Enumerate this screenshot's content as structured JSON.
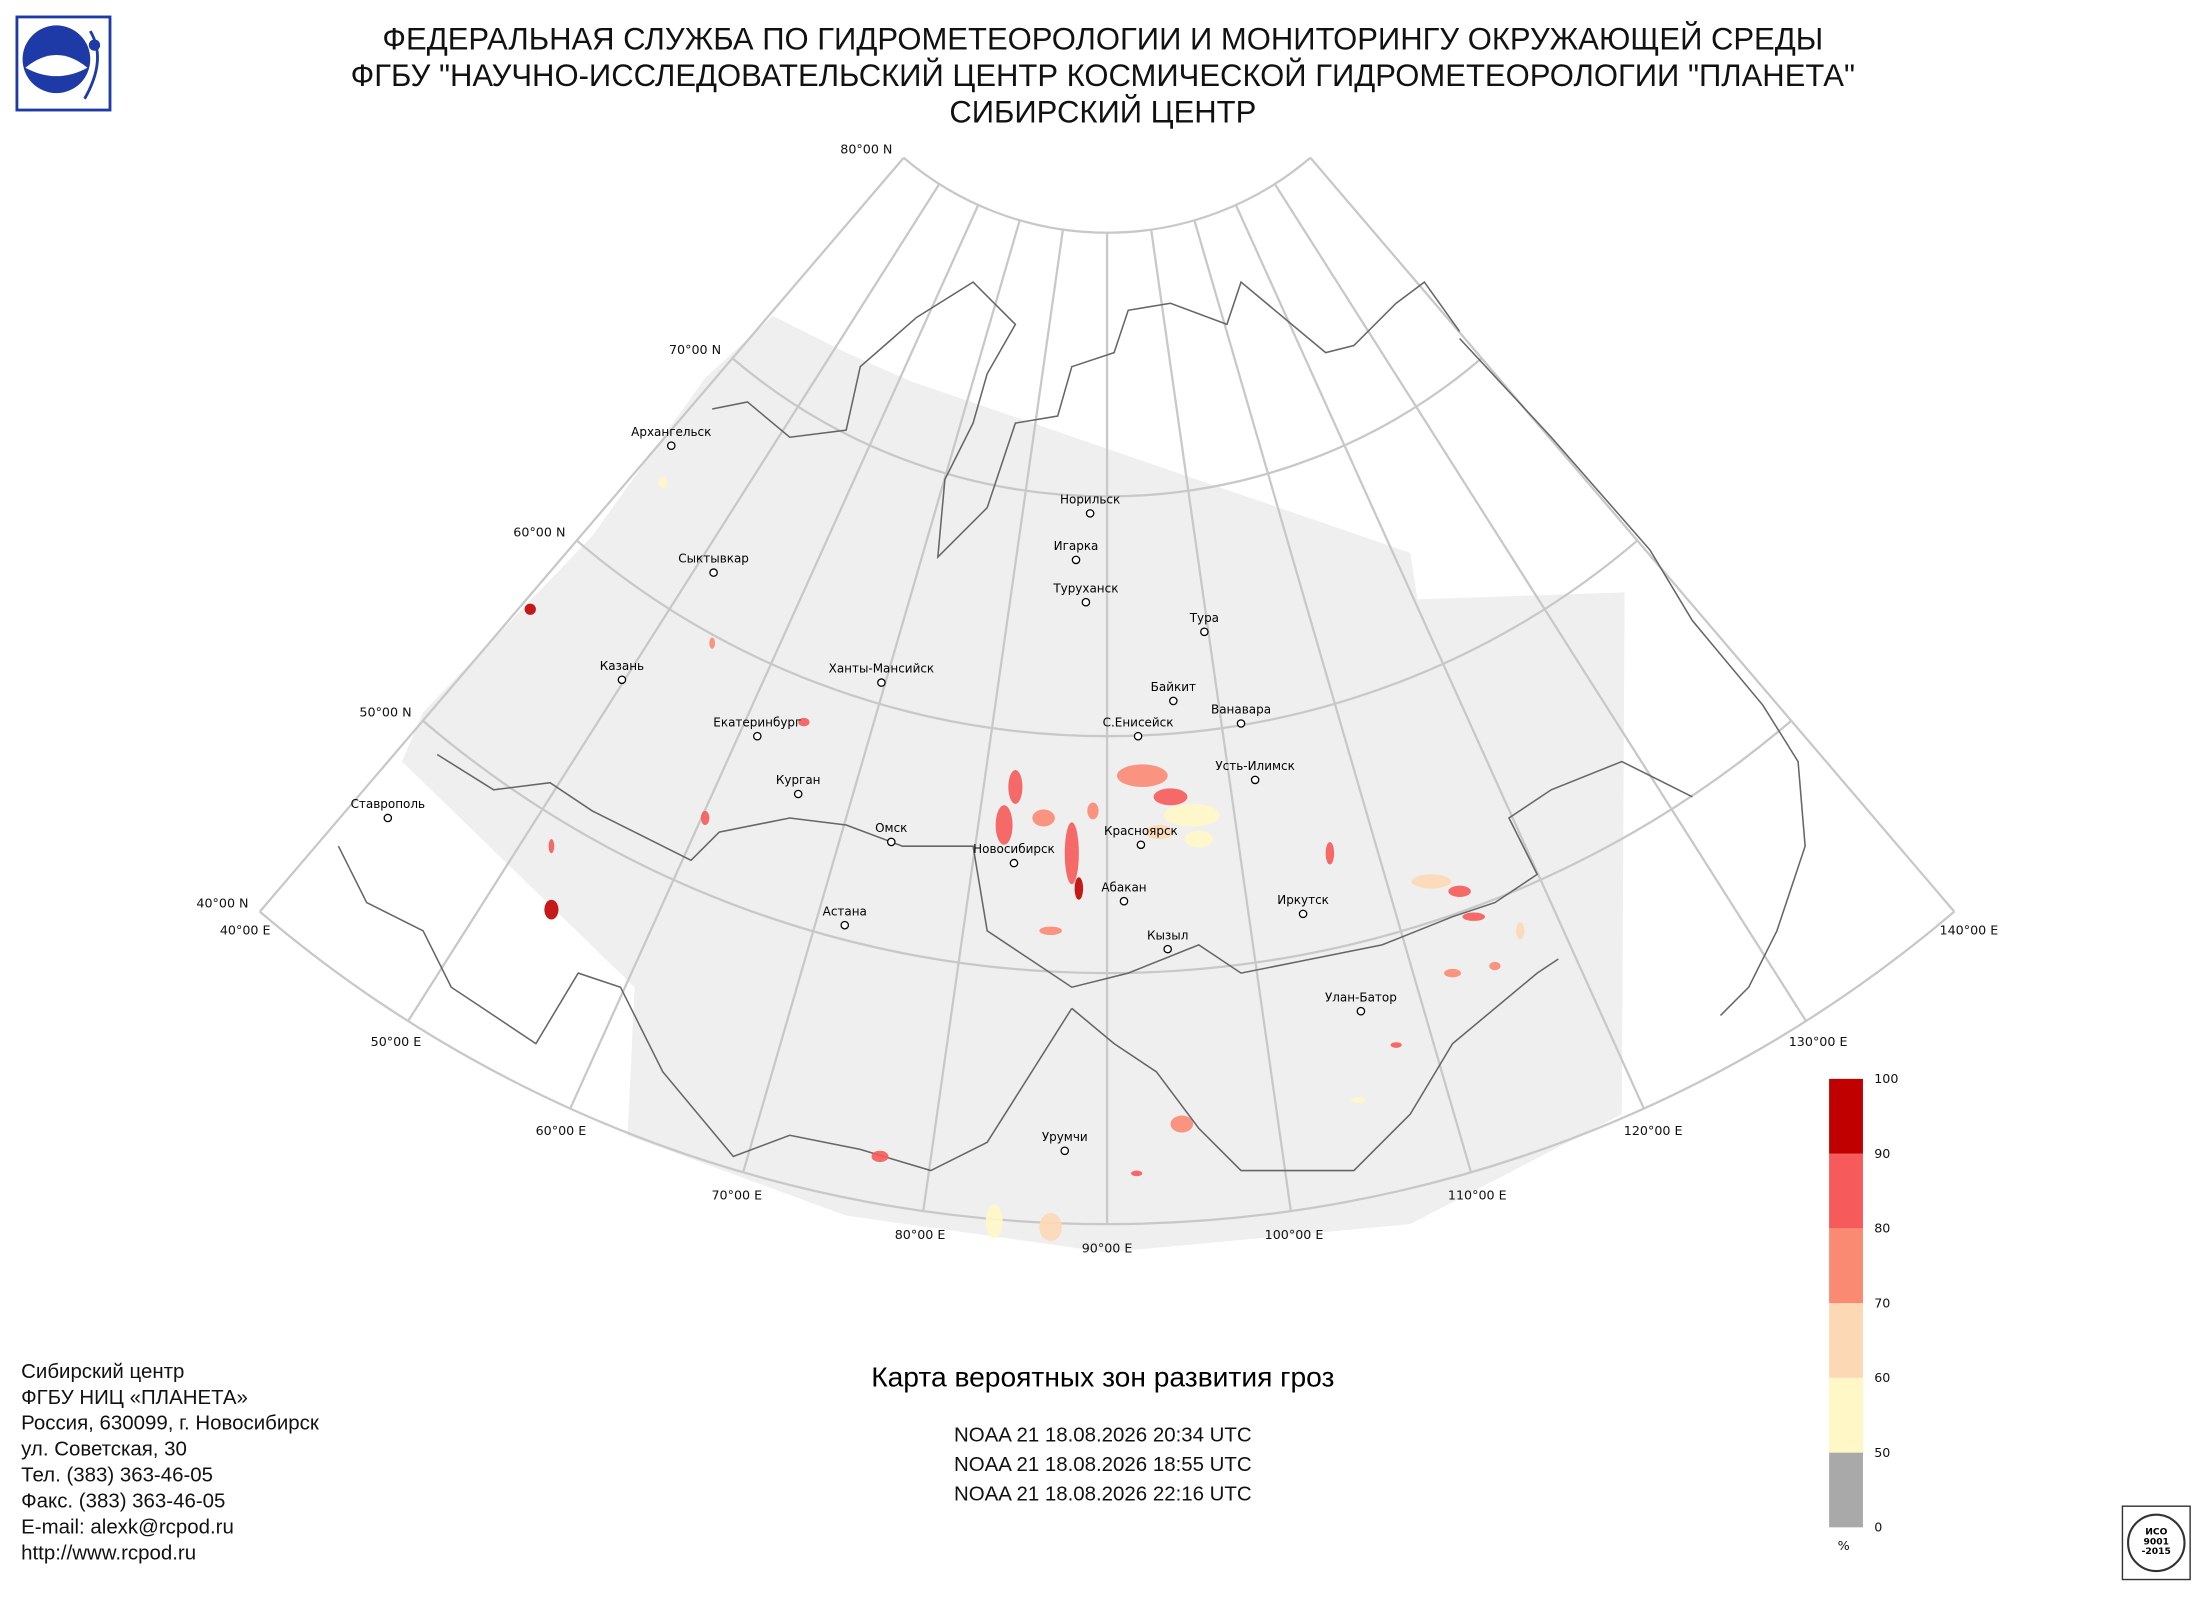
{
  "header": {
    "lines": [
      "ФЕДЕРАЛЬНАЯ СЛУЖБА ПО ГИДРОМЕТЕОРОЛОГИИ И МОНИТОРИНГУ ОКРУЖАЮЩЕЙ СРЕДЫ",
      "ФГБУ \"НАУЧНО-ИССЛЕДОВАТЕЛЬСКИЙ ЦЕНТР КОСМИЧЕСКОЙ ГИДРОМЕТЕОРОЛОГИИ \"ПЛАНЕТА\"",
      "СИБИРСКИЙ ЦЕНТР"
    ]
  },
  "map": {
    "latitude_labels": [
      "80°00 N",
      "70°00 N",
      "60°00 N",
      "50°00 N",
      "40°00 N"
    ],
    "longitude_labels": [
      "40°00 E",
      "50°00 E",
      "60°00 E",
      "70°00 E",
      "80°00 E",
      "90°00 E",
      "100°00 E",
      "110°00 E",
      "120°00 E",
      "130°00 E",
      "140°00 E"
    ],
    "cities": [
      "Архангельск",
      "Сыктывкар",
      "Казань",
      "Ханты-Мансийск",
      "Екатеринбург",
      "Курган",
      "Ставрополь",
      "Омск",
      "Новосибирск",
      "Астана",
      "Норильск",
      "Игарка",
      "Туруханск",
      "Тура",
      "Байкит",
      "Ванавара",
      "С.Енисейск",
      "Усть-Илимск",
      "Красноярск",
      "Абакан",
      "Иркутск",
      "Кызыл",
      "Улан-Батор",
      "Урумчи"
    ]
  },
  "legend": {
    "ticks": [
      0,
      50,
      60,
      70,
      80,
      90,
      100
    ],
    "colors": [
      "#a9a9a9",
      "#fff7c6",
      "#fdd8b4",
      "#fb8a73",
      "#f65a5a",
      "#c00000"
    ],
    "unit": "%"
  },
  "product": {
    "title": "Карта вероятных зон развития гроз",
    "passes": [
      "NOAA 21 18.08.2026  20:34 UTC",
      "NOAA 21 18.08.2026  18:55 UTC",
      "NOAA 21 18.08.2026  22:16 UTC"
    ]
  },
  "footer": {
    "address": [
      "Сибирский центр",
      "ФГБУ НИЦ «ПЛАНЕТА»",
      "Россия, 630099, г. Новосибирск",
      "ул. Советская, 30",
      "Тел. (383) 363-46-05",
      "Факс. (383) 363-46-05",
      "E-mail: alexk@rcpod.ru",
      "http://www.rcpod.ru"
    ]
  },
  "stamp": [
    "ИСО",
    "9001",
    "-2015"
  ]
}
